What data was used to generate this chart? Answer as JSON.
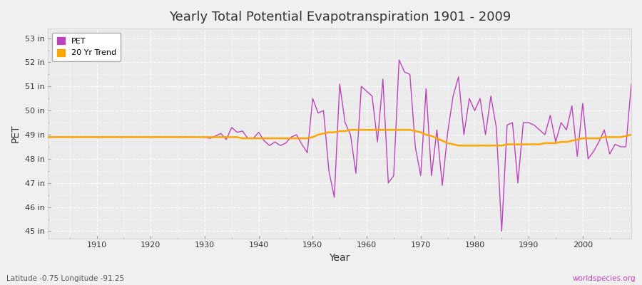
{
  "title": "Yearly Total Potential Evapotranspiration 1901 - 2009",
  "xlabel": "Year",
  "ylabel": "PET",
  "subtitle_left": "Latitude -0.75 Longitude -91.25",
  "subtitle_right": "worldspecies.org",
  "pet_color": "#BB44BB",
  "trend_color": "#FFA500",
  "background_color": "#F0F0F0",
  "plot_bg_color": "#EBEBEB",
  "grid_color": "#FFFFFF",
  "ylim": [
    44.7,
    53.4
  ],
  "xlim": [
    1901,
    2009
  ],
  "yticks": [
    45,
    46,
    47,
    48,
    49,
    50,
    51,
    52,
    53
  ],
  "xticks": [
    1910,
    1920,
    1930,
    1940,
    1950,
    1960,
    1970,
    1980,
    1990,
    2000
  ],
  "years": [
    1901,
    1902,
    1903,
    1904,
    1905,
    1906,
    1907,
    1908,
    1909,
    1910,
    1911,
    1912,
    1913,
    1914,
    1915,
    1916,
    1917,
    1918,
    1919,
    1920,
    1921,
    1922,
    1923,
    1924,
    1925,
    1926,
    1927,
    1928,
    1929,
    1930,
    1931,
    1932,
    1933,
    1934,
    1935,
    1936,
    1937,
    1938,
    1939,
    1940,
    1941,
    1942,
    1943,
    1944,
    1945,
    1946,
    1947,
    1948,
    1949,
    1950,
    1951,
    1952,
    1953,
    1954,
    1955,
    1956,
    1957,
    1958,
    1959,
    1960,
    1961,
    1962,
    1963,
    1964,
    1965,
    1966,
    1967,
    1968,
    1969,
    1970,
    1971,
    1972,
    1973,
    1974,
    1975,
    1976,
    1977,
    1978,
    1979,
    1980,
    1981,
    1982,
    1983,
    1984,
    1985,
    1986,
    1987,
    1988,
    1989,
    1990,
    1991,
    1992,
    1993,
    1994,
    1995,
    1996,
    1997,
    1998,
    1999,
    2000,
    2001,
    2002,
    2003,
    2004,
    2005,
    2006,
    2007,
    2008,
    2009
  ],
  "pet_values": [
    48.9,
    48.9,
    48.9,
    48.9,
    48.9,
    48.9,
    48.9,
    48.9,
    48.9,
    48.9,
    48.9,
    48.9,
    48.9,
    48.9,
    48.9,
    48.9,
    48.9,
    48.9,
    48.9,
    48.9,
    48.9,
    48.9,
    48.9,
    48.9,
    48.9,
    48.9,
    48.9,
    48.9,
    48.9,
    48.9,
    48.85,
    48.95,
    49.05,
    48.8,
    49.3,
    49.1,
    49.15,
    48.85,
    48.85,
    49.1,
    48.75,
    48.55,
    48.7,
    48.55,
    48.65,
    48.9,
    49.0,
    48.6,
    48.25,
    50.5,
    49.9,
    50.0,
    47.5,
    46.4,
    51.1,
    49.5,
    49.0,
    47.4,
    51.0,
    50.8,
    50.6,
    48.7,
    51.3,
    47.0,
    47.3,
    52.1,
    51.6,
    51.5,
    48.5,
    47.3,
    50.9,
    47.3,
    49.2,
    46.9,
    49.1,
    50.6,
    51.4,
    49.0,
    50.5,
    50.0,
    50.5,
    49.0,
    50.6,
    49.3,
    45.0,
    49.4,
    49.5,
    47.0,
    49.5,
    49.5,
    49.4,
    49.2,
    49.0,
    49.8,
    48.7,
    49.5,
    49.2,
    50.2,
    48.1,
    50.3,
    48.0,
    48.3,
    48.7,
    49.2,
    48.2,
    48.6,
    48.5,
    48.5,
    51.1
  ],
  "trend_values": [
    48.9,
    48.9,
    48.9,
    48.9,
    48.9,
    48.9,
    48.9,
    48.9,
    48.9,
    48.9,
    48.9,
    48.9,
    48.9,
    48.9,
    48.9,
    48.9,
    48.9,
    48.9,
    48.9,
    48.9,
    48.9,
    48.9,
    48.9,
    48.9,
    48.9,
    48.9,
    48.9,
    48.9,
    48.9,
    48.9,
    48.9,
    48.9,
    48.9,
    48.9,
    48.9,
    48.9,
    48.85,
    48.85,
    48.85,
    48.85,
    48.85,
    48.85,
    48.85,
    48.85,
    48.85,
    48.85,
    48.85,
    48.85,
    48.85,
    48.9,
    49.0,
    49.05,
    49.1,
    49.1,
    49.15,
    49.15,
    49.2,
    49.2,
    49.2,
    49.2,
    49.2,
    49.2,
    49.2,
    49.2,
    49.2,
    49.2,
    49.2,
    49.2,
    49.15,
    49.1,
    49.0,
    48.95,
    48.85,
    48.75,
    48.65,
    48.6,
    48.55,
    48.55,
    48.55,
    48.55,
    48.55,
    48.55,
    48.55,
    48.55,
    48.55,
    48.6,
    48.6,
    48.6,
    48.6,
    48.6,
    48.6,
    48.6,
    48.65,
    48.65,
    48.65,
    48.7,
    48.7,
    48.75,
    48.8,
    48.85,
    48.85,
    48.85,
    48.85,
    48.9,
    48.9,
    48.9,
    48.9,
    48.95,
    49.0
  ]
}
